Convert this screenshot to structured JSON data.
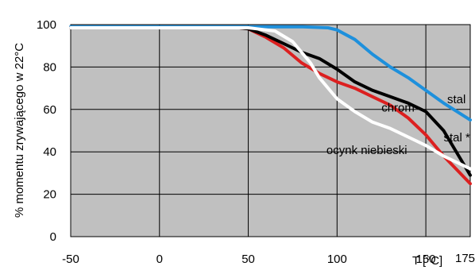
{
  "chart_data": {
    "type": "line",
    "xlabel": "T [°C]",
    "ylabel": "% momentu zrywającego w 22°C",
    "xlim": [
      -50,
      175
    ],
    "ylim": [
      0,
      100
    ],
    "x_ticks": [
      "-50",
      "0",
      "50",
      "100",
      "150",
      "175"
    ],
    "y_ticks": [
      "0",
      "20",
      "40",
      "60",
      "80",
      "100"
    ],
    "grid": true,
    "plot_background": "#c0c0c0",
    "series": [
      {
        "name": "stal",
        "color": "#1e90dc",
        "x": [
          -50,
          0,
          50,
          80,
          95,
          100,
          110,
          120,
          130,
          140,
          150,
          160,
          175
        ],
        "y": [
          99,
          99,
          99,
          99,
          98.5,
          97.5,
          93,
          86,
          80,
          75,
          69,
          63,
          55
        ]
      },
      {
        "name": "chrom",
        "color": "#dc2020",
        "x": [
          -50,
          0,
          45,
          50,
          60,
          70,
          80,
          90,
          100,
          110,
          120,
          130,
          140,
          150,
          160,
          175
        ],
        "y": [
          98.5,
          98.5,
          98.5,
          98,
          94,
          89,
          82,
          77,
          73,
          70,
          66,
          62,
          56,
          48,
          38,
          25
        ]
      },
      {
        "name": "stal *",
        "color": "#000000",
        "x": [
          -50,
          0,
          45,
          50,
          60,
          70,
          80,
          90,
          100,
          110,
          120,
          130,
          140,
          150,
          160,
          175
        ],
        "y": [
          98.5,
          98.5,
          98.5,
          98,
          95,
          91,
          87,
          84,
          79,
          73,
          69,
          66,
          63,
          59,
          50,
          29
        ]
      },
      {
        "name": "ocynk niebieski",
        "color": "#ffffff",
        "x": [
          -50,
          0,
          50,
          55,
          65,
          75,
          85,
          90,
          100,
          110,
          120,
          130,
          140,
          150,
          160,
          175
        ],
        "y": [
          98.5,
          98.5,
          98.5,
          98,
          97,
          92,
          82,
          75,
          65,
          59,
          54,
          51,
          47,
          43,
          38,
          32
        ]
      }
    ],
    "annotations": [
      {
        "text": "stal",
        "x": 162,
        "y": 63
      },
      {
        "text": "chrom",
        "x": 125,
        "y": 59
      },
      {
        "text": "stal *",
        "x": 160,
        "y": 45
      },
      {
        "text": "ocynk niebieski",
        "x": 94,
        "y": 39
      }
    ]
  }
}
